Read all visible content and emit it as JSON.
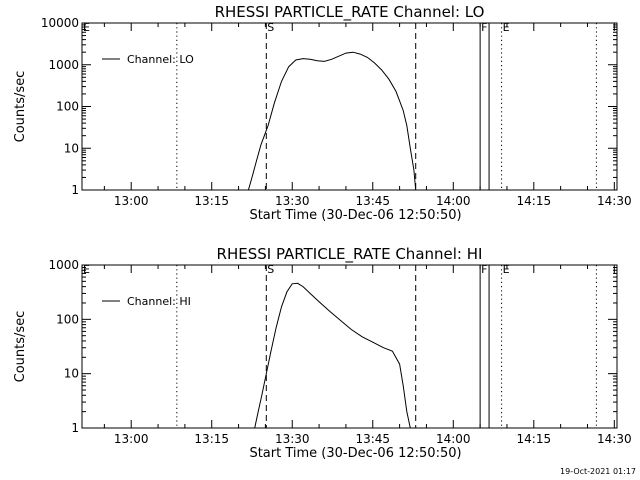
{
  "footer_timestamp": "19-Oct-2021 01:17",
  "chart_data": [
    {
      "type": "line",
      "title": "RHESSI PARTICLE_RATE Channel: LO",
      "xlabel": "Start Time (30-Dec-06 12:50:50)",
      "ylabel": "Counts/sec",
      "yscale": "log",
      "ylim": [
        1,
        10000
      ],
      "yticks": [
        1,
        10,
        100,
        1000,
        10000
      ],
      "ytick_labels": [
        "1",
        "10",
        "100",
        "1000",
        "10000"
      ],
      "xlim": [
        "12:50:50",
        "14:30:30"
      ],
      "xticks": [
        "13:00",
        "13:15",
        "13:30",
        "13:45",
        "14:00",
        "14:15",
        "14:30"
      ],
      "legend": {
        "label": "Channel: LO",
        "position": "top-left"
      },
      "event_markers": [
        {
          "label": "E",
          "time": "12:50:50",
          "style": "dotted"
        },
        {
          "label": "",
          "time": "13:08:30",
          "style": "dotted"
        },
        {
          "label": "S",
          "time": "13:25:10",
          "style": "dashed"
        },
        {
          "label": "",
          "time": "13:53:00",
          "style": "dashed"
        },
        {
          "label": "F",
          "time": "14:05:00",
          "style": "solid"
        },
        {
          "label": "",
          "time": "14:06:40",
          "style": "solid"
        },
        {
          "label": "E",
          "time": "14:09:00",
          "style": "dotted"
        },
        {
          "label": "",
          "time": "14:26:40",
          "style": "dotted"
        }
      ],
      "series": [
        {
          "x": [
            "13:21:50",
            "13:22:30",
            "13:23:20",
            "13:24:10",
            "13:25:30",
            "13:26:40",
            "13:28:00",
            "13:29:20",
            "13:30:40",
            "13:32:00",
            "13:33:20",
            "13:34:40",
            "13:36:00",
            "13:37:20",
            "13:38:40",
            "13:40:00",
            "13:41:20",
            "13:42:40",
            "13:44:00",
            "13:45:20",
            "13:46:40",
            "13:48:00",
            "13:49:20",
            "13:50:40",
            "13:51:20",
            "13:52:00",
            "13:52:40",
            "13:53:00"
          ],
          "y": [
            1,
            2,
            5,
            12,
            35,
            120,
            400,
            900,
            1300,
            1400,
            1350,
            1250,
            1200,
            1350,
            1600,
            1900,
            2000,
            1800,
            1500,
            1100,
            750,
            450,
            230,
            80,
            35,
            10,
            3,
            1
          ]
        }
      ]
    },
    {
      "type": "line",
      "title": "RHESSI PARTICLE_RATE Channel: HI",
      "xlabel": "Start Time (30-Dec-06 12:50:50)",
      "ylabel": "Counts/sec",
      "yscale": "log",
      "ylim": [
        1,
        1000
      ],
      "yticks": [
        1,
        10,
        100,
        1000
      ],
      "ytick_labels": [
        "1",
        "10",
        "100",
        "1000"
      ],
      "xlim": [
        "12:50:50",
        "14:30:30"
      ],
      "xticks": [
        "13:00",
        "13:15",
        "13:30",
        "13:45",
        "14:00",
        "14:15",
        "14:30"
      ],
      "legend": {
        "label": "Channel: HI",
        "position": "top-left"
      },
      "event_markers": [
        {
          "label": "E",
          "time": "12:50:50",
          "style": "dotted"
        },
        {
          "label": "",
          "time": "13:08:30",
          "style": "dotted"
        },
        {
          "label": "S",
          "time": "13:25:10",
          "style": "dashed"
        },
        {
          "label": "",
          "time": "13:53:00",
          "style": "dashed"
        },
        {
          "label": "F",
          "time": "14:05:00",
          "style": "solid"
        },
        {
          "label": "",
          "time": "14:06:40",
          "style": "solid"
        },
        {
          "label": "E",
          "time": "14:09:00",
          "style": "dotted"
        },
        {
          "label": "",
          "time": "14:26:40",
          "style": "dotted"
        }
      ],
      "series": [
        {
          "x": [
            "13:23:00",
            "13:23:40",
            "13:24:20",
            "13:25:10",
            "13:26:00",
            "13:27:00",
            "13:28:00",
            "13:29:00",
            "13:30:00",
            "13:31:00",
            "13:32:00",
            "13:33:20",
            "13:35:00",
            "13:37:00",
            "13:39:00",
            "13:41:00",
            "13:43:00",
            "13:45:00",
            "13:47:00",
            "13:48:40",
            "13:50:00",
            "13:50:40",
            "13:51:20",
            "13:52:00"
          ],
          "y": [
            1,
            2,
            4,
            10,
            25,
            70,
            170,
            320,
            450,
            460,
            400,
            300,
            210,
            140,
            95,
            65,
            48,
            38,
            30,
            26,
            15,
            6,
            2,
            1
          ]
        }
      ]
    }
  ]
}
